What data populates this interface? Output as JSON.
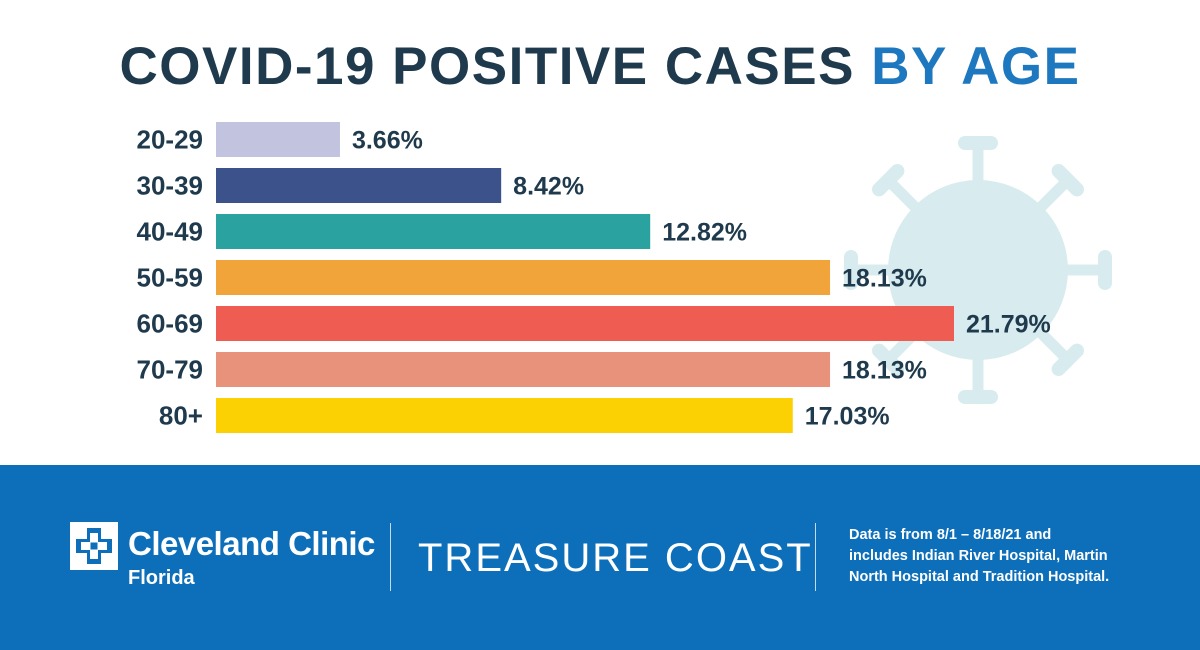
{
  "chart_data": {
    "type": "bar",
    "orientation": "horizontal",
    "title_main": "COVID-19 POSITIVE CASES",
    "title_accent": "BY AGE",
    "categories": [
      "20-29",
      "30-39",
      "40-49",
      "50-59",
      "60-69",
      "70-79",
      "80+"
    ],
    "values": [
      3.66,
      8.42,
      12.82,
      18.13,
      21.79,
      18.13,
      17.03
    ],
    "value_labels": [
      "3.66%",
      "8.42%",
      "12.82%",
      "18.13%",
      "21.79%",
      "18.13%",
      "17.03%"
    ],
    "colors": [
      "#c2c3de",
      "#3b528a",
      "#2aa3a0",
      "#f1a43a",
      "#ef5c52",
      "#e8917b",
      "#fcd104"
    ],
    "xlim": [
      0,
      21.79
    ],
    "xlabel": "",
    "ylabel": "",
    "grid": false,
    "legend": "none"
  },
  "colors": {
    "title": "#1f3a4d",
    "title_accent": "#1e78bf",
    "footer_bg": "#0d6fba",
    "virus": "#d8ecef"
  },
  "footer": {
    "brand_name": "Cleveland Clinic",
    "brand_sub": "Florida",
    "region": "TREASURE COAST",
    "note_lines": [
      "Data is from 8/1 – 8/18/21 and",
      "includes Indian River Hospital, Martin",
      "North Hospital and Tradition Hospital."
    ]
  },
  "icons": {
    "background": "virus-icon",
    "logo": "cleveland-clinic-cross-icon"
  }
}
